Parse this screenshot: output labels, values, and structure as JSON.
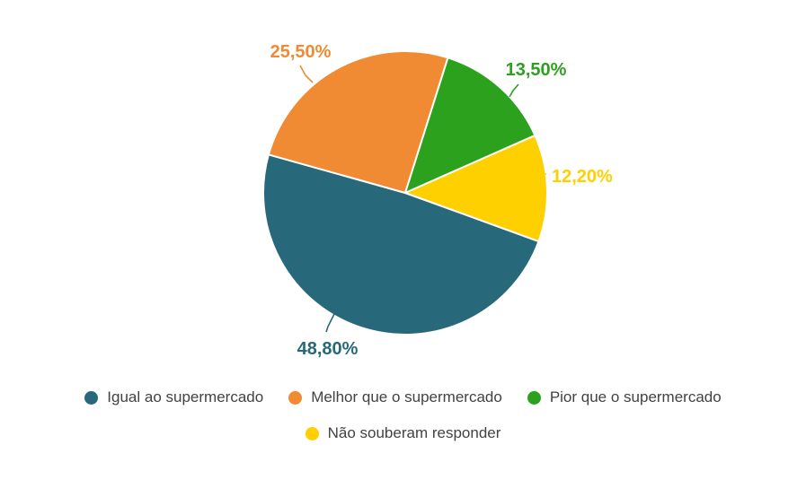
{
  "chart_data": {
    "type": "pie",
    "title": "",
    "unit": "%",
    "decimal_separator": ",",
    "start_angle_deg_clockwise_from_top": 110,
    "direction": "clockwise",
    "legend_position": "bottom",
    "background_color": "#ffffff",
    "legend_text_color": "#424242",
    "slices": [
      {
        "name": "Igual ao supermercado",
        "value": 48.8,
        "label": "48,80%",
        "color": "#27697b"
      },
      {
        "name": "Melhor que o supermercado",
        "value": 25.5,
        "label": "25,50%",
        "color": "#f08a33"
      },
      {
        "name": "Pior que o supermercado",
        "value": 13.5,
        "label": "13,50%",
        "color": "#2ba11e"
      },
      {
        "name": "Não souberam responder",
        "value": 12.2,
        "label": "12,20%",
        "color": "#ffd000"
      }
    ]
  }
}
